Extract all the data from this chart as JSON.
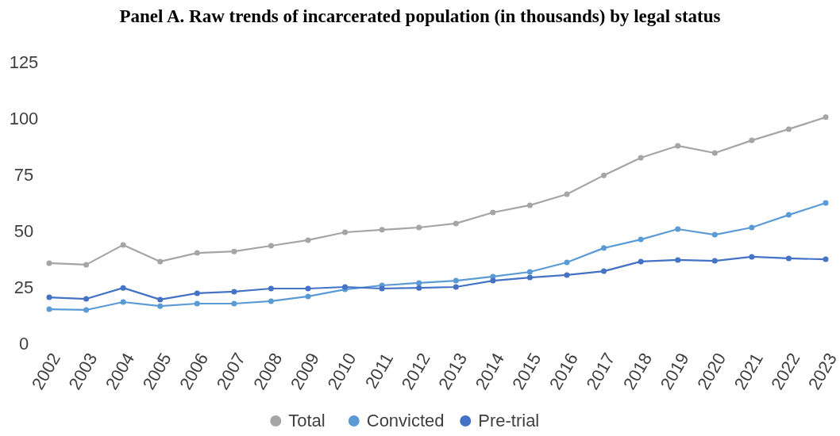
{
  "chart_data": {
    "type": "line",
    "title": "Panel A. Raw trends of incarcerated population (in thousands) by legal status",
    "categories": [
      "2002",
      "2003",
      "2004",
      "2005",
      "2006",
      "2007",
      "2008",
      "2009",
      "2010",
      "2011",
      "2012",
      "2013",
      "2014",
      "2015",
      "2016",
      "2017",
      "2018",
      "2019",
      "2020",
      "2021",
      "2022",
      "2023"
    ],
    "series": [
      {
        "name": "Total",
        "color": "#a5a5a5",
        "values": [
          35.6,
          34.9,
          43.7,
          36.3,
          40.1,
          40.8,
          43.3,
          45.8,
          49.3,
          50.4,
          51.4,
          53.2,
          58.1,
          61.3,
          66.2,
          74.6,
          82.4,
          87.7,
          84.5,
          90.1,
          95.1,
          100.4
        ]
      },
      {
        "name": "Convicted",
        "color": "#5b9bd5",
        "values": [
          15.1,
          14.8,
          18.3,
          16.5,
          17.6,
          17.6,
          18.7,
          20.8,
          23.9,
          25.7,
          26.8,
          27.8,
          29.6,
          31.7,
          35.9,
          42.3,
          46.1,
          50.7,
          48.2,
          51.4,
          57.0,
          62.3
        ]
      },
      {
        "name": "Pre-trial",
        "color": "#4472c4",
        "values": [
          20.4,
          19.7,
          24.6,
          19.4,
          22.2,
          22.9,
          24.3,
          24.3,
          25.0,
          24.3,
          24.6,
          25.0,
          27.8,
          29.2,
          30.3,
          32.0,
          36.3,
          37.0,
          36.6,
          38.4,
          37.7,
          37.3
        ]
      }
    ],
    "ylim": [
      0,
      125
    ],
    "yticks": [
      0,
      25,
      50,
      75,
      100,
      125
    ],
    "grid": false,
    "legend": "bottom",
    "marker": "circle",
    "line_style": "solid"
  }
}
